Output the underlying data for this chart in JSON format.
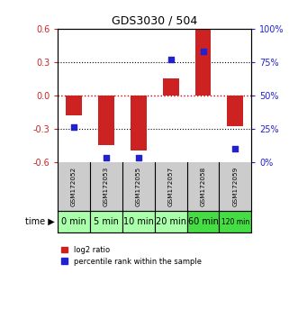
{
  "title": "GDS3030 / 504",
  "samples": [
    "GSM172052",
    "GSM172053",
    "GSM172055",
    "GSM172057",
    "GSM172058",
    "GSM172059"
  ],
  "time_labels": [
    "0 min",
    "5 min",
    "10 min",
    "20 min",
    "60 min",
    "120 min"
  ],
  "log2_ratios": [
    -0.18,
    -0.45,
    -0.5,
    0.15,
    0.6,
    -0.28
  ],
  "percentile_ranks": [
    26,
    3,
    3,
    77,
    83,
    10
  ],
  "ylim": [
    -0.6,
    0.6
  ],
  "yticks_left": [
    -0.6,
    -0.3,
    0.0,
    0.3,
    0.6
  ],
  "yticks_right": [
    0,
    25,
    50,
    75,
    100
  ],
  "bar_color": "#cc2222",
  "dot_color": "#2222cc",
  "bg_color": "#ffffff",
  "grid_color": "#000000",
  "zero_line_color": "#cc0000",
  "sample_bg_color": "#cccccc",
  "time_bg_color_light": "#aaffaa",
  "time_bg_color_dark": "#44dd44",
  "bar_width": 0.5
}
